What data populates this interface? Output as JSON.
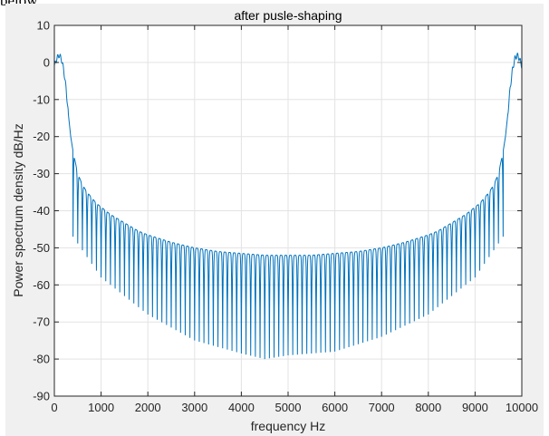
{
  "snippet_text": "below:",
  "chart_data": {
    "type": "line",
    "title": "after pusle-shaping",
    "xlabel": "frequency Hz",
    "ylabel": "Power spectrum density dB/Hz",
    "xlim": [
      0,
      10000
    ],
    "ylim": [
      -90,
      10
    ],
    "xticks": [
      0,
      1000,
      2000,
      3000,
      4000,
      5000,
      6000,
      7000,
      8000,
      9000,
      10000
    ],
    "yticks": [
      10,
      0,
      -10,
      -20,
      -30,
      -40,
      -50,
      -60,
      -70,
      -80,
      -90
    ],
    "grid": true,
    "line_color": "#0072bd",
    "series": [
      {
        "name": "",
        "x": [
          0,
          50,
          100,
          150,
          200,
          250,
          300,
          350,
          400,
          500,
          600,
          700,
          800,
          900,
          1000,
          1200,
          1400,
          1600,
          1800,
          2000,
          2500,
          3000,
          3500,
          4000,
          4500,
          5000,
          5500,
          6000,
          6500,
          7000,
          7500,
          8000,
          8200,
          8400,
          8600,
          8800,
          9000,
          9100,
          9200,
          9300,
          9400,
          9500,
          9600,
          9650,
          9700,
          9750,
          9800,
          9850,
          9900,
          9950,
          10000
        ],
        "y": [
          -1,
          1,
          2,
          1,
          -2,
          -7,
          -14,
          -20,
          -24,
          -30,
          -33,
          -35,
          -36.5,
          -38,
          -39,
          -41,
          -42.5,
          -44,
          -45.5,
          -46.5,
          -48.5,
          -50,
          -51,
          -51.5,
          -52,
          -52,
          -52,
          -51.5,
          -51,
          -50,
          -48.5,
          -46.5,
          -45.5,
          -44,
          -42.5,
          -41,
          -39,
          -38,
          -36.5,
          -35,
          -33,
          -30,
          -24,
          -20,
          -14,
          -7,
          -2,
          1,
          2,
          1,
          -1
        ],
        "null_envelope_x": [
          400,
          1000,
          2000,
          3000,
          4000,
          4500,
          5000,
          6000,
          7000,
          8000,
          9000,
          9600
        ],
        "null_envelope_y": [
          -47,
          -58,
          -68,
          -75,
          -78.5,
          -80,
          -79,
          -78,
          -74,
          -68,
          -58,
          -47
        ],
        "lobe_spacing_hz": 100
      }
    ]
  }
}
